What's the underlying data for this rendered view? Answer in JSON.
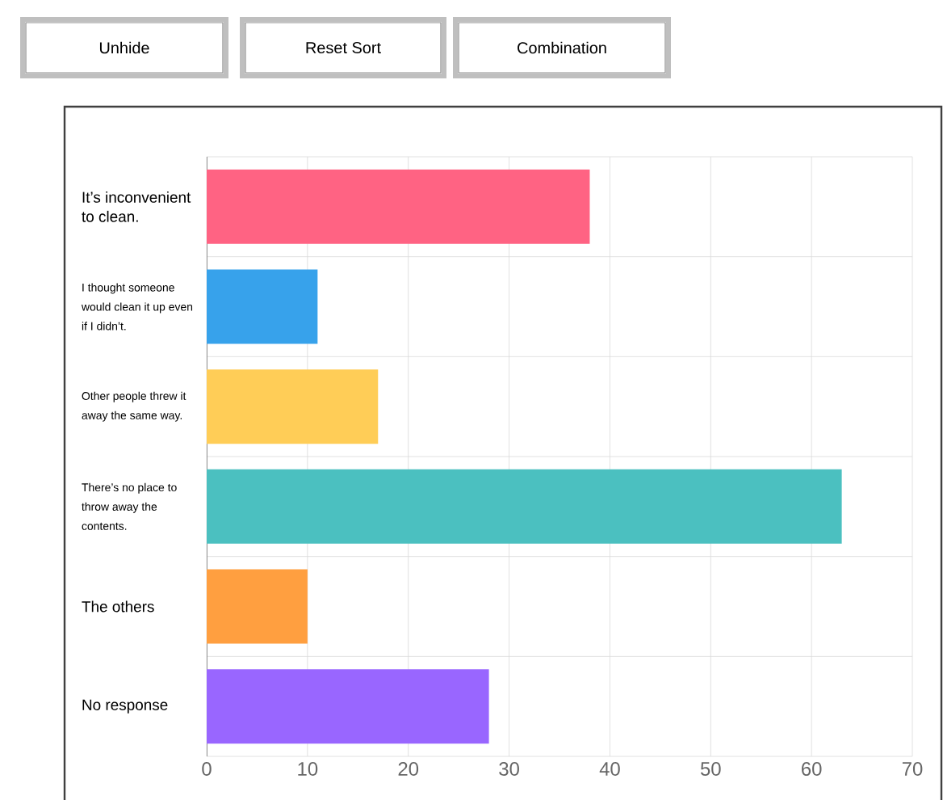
{
  "chart_data": {
    "type": "bar",
    "orientation": "horizontal",
    "categories": [
      "It’s inconvenient to clean.",
      "I thought someone would clean it up even if I didn’t.",
      "Other people threw it away the same way.",
      "There’s no place to throw away the contents.",
      "The others",
      "No response"
    ],
    "values": [
      38,
      11,
      17,
      63,
      10,
      28
    ],
    "colors": [
      "#ff6383",
      "#37a2eb",
      "#ffcd57",
      "#4bc0c0",
      "#ff9f40",
      "#9966ff"
    ],
    "xlim": [
      0,
      70
    ],
    "xticks": [
      0,
      10,
      20,
      30,
      40,
      50,
      60,
      70
    ],
    "grid": "x",
    "annotations": [
      "Unhide",
      "Reset Sort",
      "Combination"
    ]
  }
}
